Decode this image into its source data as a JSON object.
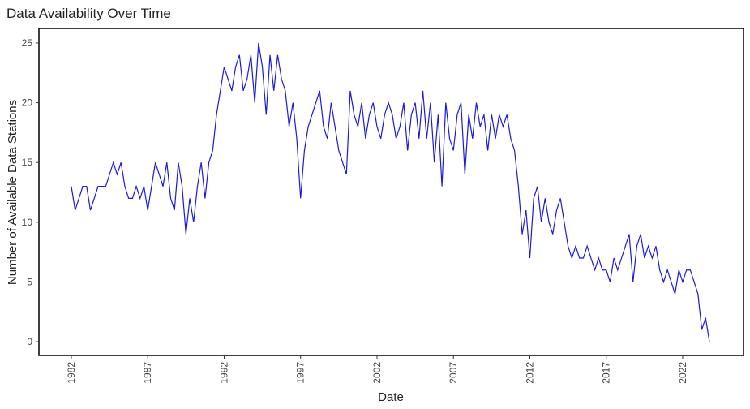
{
  "chart_data": {
    "type": "line",
    "title": "Data Availability Over Time",
    "x_label": "Date",
    "y_label": "Number of Available Data Stations",
    "x": [
      1982,
      1982.25,
      1982.5,
      1982.75,
      1983,
      1983.25,
      1983.5,
      1983.75,
      1984,
      1984.25,
      1984.5,
      1984.75,
      1985,
      1985.25,
      1985.5,
      1985.75,
      1986,
      1986.25,
      1986.5,
      1986.75,
      1987,
      1987.25,
      1987.5,
      1987.75,
      1988,
      1988.25,
      1988.5,
      1988.75,
      1989,
      1989.25,
      1989.5,
      1989.75,
      1990,
      1990.25,
      1990.5,
      1990.75,
      1991,
      1991.25,
      1991.5,
      1991.75,
      1992,
      1992.25,
      1992.5,
      1992.75,
      1993,
      1993.25,
      1993.5,
      1993.75,
      1994,
      1994.25,
      1994.5,
      1994.75,
      1995,
      1995.25,
      1995.5,
      1995.75,
      1996,
      1996.25,
      1996.5,
      1996.75,
      1997,
      1997.25,
      1997.5,
      1997.75,
      1998,
      1998.25,
      1998.5,
      1998.75,
      1999,
      1999.25,
      1999.5,
      1999.75,
      2000,
      2000.25,
      2000.5,
      2000.75,
      2001,
      2001.25,
      2001.5,
      2001.75,
      2002,
      2002.25,
      2002.5,
      2002.75,
      2003,
      2003.25,
      2003.5,
      2003.75,
      2004,
      2004.25,
      2004.5,
      2004.75,
      2005,
      2005.25,
      2005.5,
      2005.75,
      2006,
      2006.25,
      2006.5,
      2006.75,
      2007,
      2007.25,
      2007.5,
      2007.75,
      2008,
      2008.25,
      2008.5,
      2008.75,
      2009,
      2009.25,
      2009.5,
      2009.75,
      2010,
      2010.25,
      2010.5,
      2010.75,
      2011,
      2011.25,
      2011.5,
      2011.75,
      2012,
      2012.25,
      2012.5,
      2012.75,
      2013,
      2013.25,
      2013.5,
      2013.75,
      2014,
      2014.25,
      2014.5,
      2014.75,
      2015,
      2015.25,
      2015.5,
      2015.75,
      2016,
      2016.25,
      2016.5,
      2016.75,
      2017,
      2017.25,
      2017.5,
      2017.75,
      2018,
      2018.25,
      2018.5,
      2018.75,
      2019,
      2019.25,
      2019.5,
      2019.75,
      2020,
      2020.25,
      2020.5,
      2020.75,
      2021,
      2021.25,
      2021.5,
      2021.75,
      2022,
      2022.25,
      2022.5,
      2022.75,
      2023,
      2023.25,
      2023.5,
      2023.75
    ],
    "series": [
      {
        "color": "#1a1adb",
        "values": [
          13,
          11,
          12,
          13,
          13,
          11,
          12,
          13,
          13,
          13,
          14,
          15,
          14,
          15,
          13,
          12,
          12,
          13,
          12,
          13,
          11,
          13,
          15,
          14,
          13,
          15,
          12,
          11,
          15,
          13,
          9,
          12,
          10,
          13,
          15,
          12,
          15,
          16,
          19,
          21,
          23,
          22,
          21,
          23,
          24,
          21,
          22,
          24,
          20,
          25,
          23,
          19,
          24,
          21,
          24,
          22,
          21,
          18,
          20,
          17,
          12,
          16,
          18,
          19,
          20,
          21,
          18,
          17,
          20,
          18,
          16,
          15,
          14,
          21,
          19,
          18,
          20,
          17,
          19,
          20,
          18,
          17,
          19,
          20,
          19,
          17,
          18,
          20,
          16,
          19,
          20,
          17,
          21,
          17,
          20,
          15,
          19,
          13,
          20,
          17,
          16,
          19,
          20,
          14,
          19,
          17,
          20,
          18,
          19,
          16,
          19,
          17,
          19,
          18,
          19,
          17,
          16,
          13,
          9,
          11,
          7,
          12,
          13,
          10,
          12,
          10,
          9,
          11,
          12,
          10,
          8,
          7,
          8,
          7,
          7,
          8,
          7,
          6,
          7,
          6,
          6,
          5,
          7,
          6,
          7,
          8,
          9,
          5,
          8,
          9,
          7,
          8,
          7,
          8,
          6,
          5,
          6,
          5,
          4,
          6,
          5,
          6,
          6,
          5,
          4,
          1,
          2,
          0
        ]
      }
    ],
    "xlim": [
      1979.88,
      2025.98
    ],
    "xticks": [
      1982,
      1987,
      1992,
      1997,
      2002,
      2007,
      2012,
      2017,
      2022
    ],
    "ylim": [
      -1.15,
      26.22
    ],
    "yticks": [
      0,
      5,
      10,
      15,
      20,
      25
    ]
  }
}
